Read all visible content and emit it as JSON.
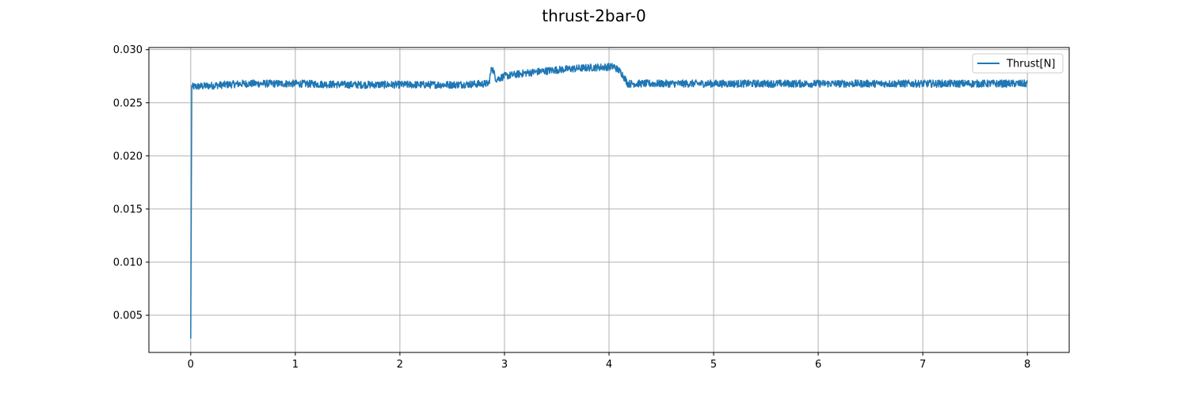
{
  "chart_data": {
    "type": "line",
    "title": "thrust-2bar-0",
    "xlabel": "",
    "ylabel": "",
    "xlim": [
      -0.4,
      8.4
    ],
    "ylim": [
      0.0015,
      0.0302
    ],
    "xticks": [
      0,
      1,
      2,
      3,
      4,
      5,
      6,
      7,
      8
    ],
    "xtick_labels": [
      "0",
      "1",
      "2",
      "3",
      "4",
      "5",
      "6",
      "7",
      "8"
    ],
    "yticks": [
      0.005,
      0.01,
      0.015,
      0.02,
      0.025,
      0.03
    ],
    "ytick_labels": [
      "0.005",
      "0.010",
      "0.015",
      "0.020",
      "0.025",
      "0.030"
    ],
    "grid": true,
    "legend_position": "top-right",
    "series": [
      {
        "name": "Thrust[N]",
        "color": "#1f77b4",
        "points": [
          [
            0.0,
            0.0028
          ],
          [
            0.01,
            0.0265
          ],
          [
            0.5,
            0.0268
          ],
          [
            1.0,
            0.0268
          ],
          [
            1.5,
            0.0267
          ],
          [
            2.0,
            0.0267
          ],
          [
            2.5,
            0.0267
          ],
          [
            2.85,
            0.0268
          ],
          [
            2.88,
            0.0284
          ],
          [
            2.92,
            0.0272
          ],
          [
            3.0,
            0.0275
          ],
          [
            3.2,
            0.0278
          ],
          [
            3.5,
            0.0281
          ],
          [
            3.8,
            0.0283
          ],
          [
            4.05,
            0.0284
          ],
          [
            4.12,
            0.0278
          ],
          [
            4.18,
            0.0268
          ],
          [
            4.5,
            0.0268
          ],
          [
            5.0,
            0.0268
          ],
          [
            5.5,
            0.0268
          ],
          [
            6.0,
            0.0268
          ],
          [
            6.5,
            0.0268
          ],
          [
            7.0,
            0.0268
          ],
          [
            7.5,
            0.0268
          ],
          [
            8.0,
            0.0268
          ]
        ],
        "noise_amplitude": 0.00035
      }
    ]
  }
}
